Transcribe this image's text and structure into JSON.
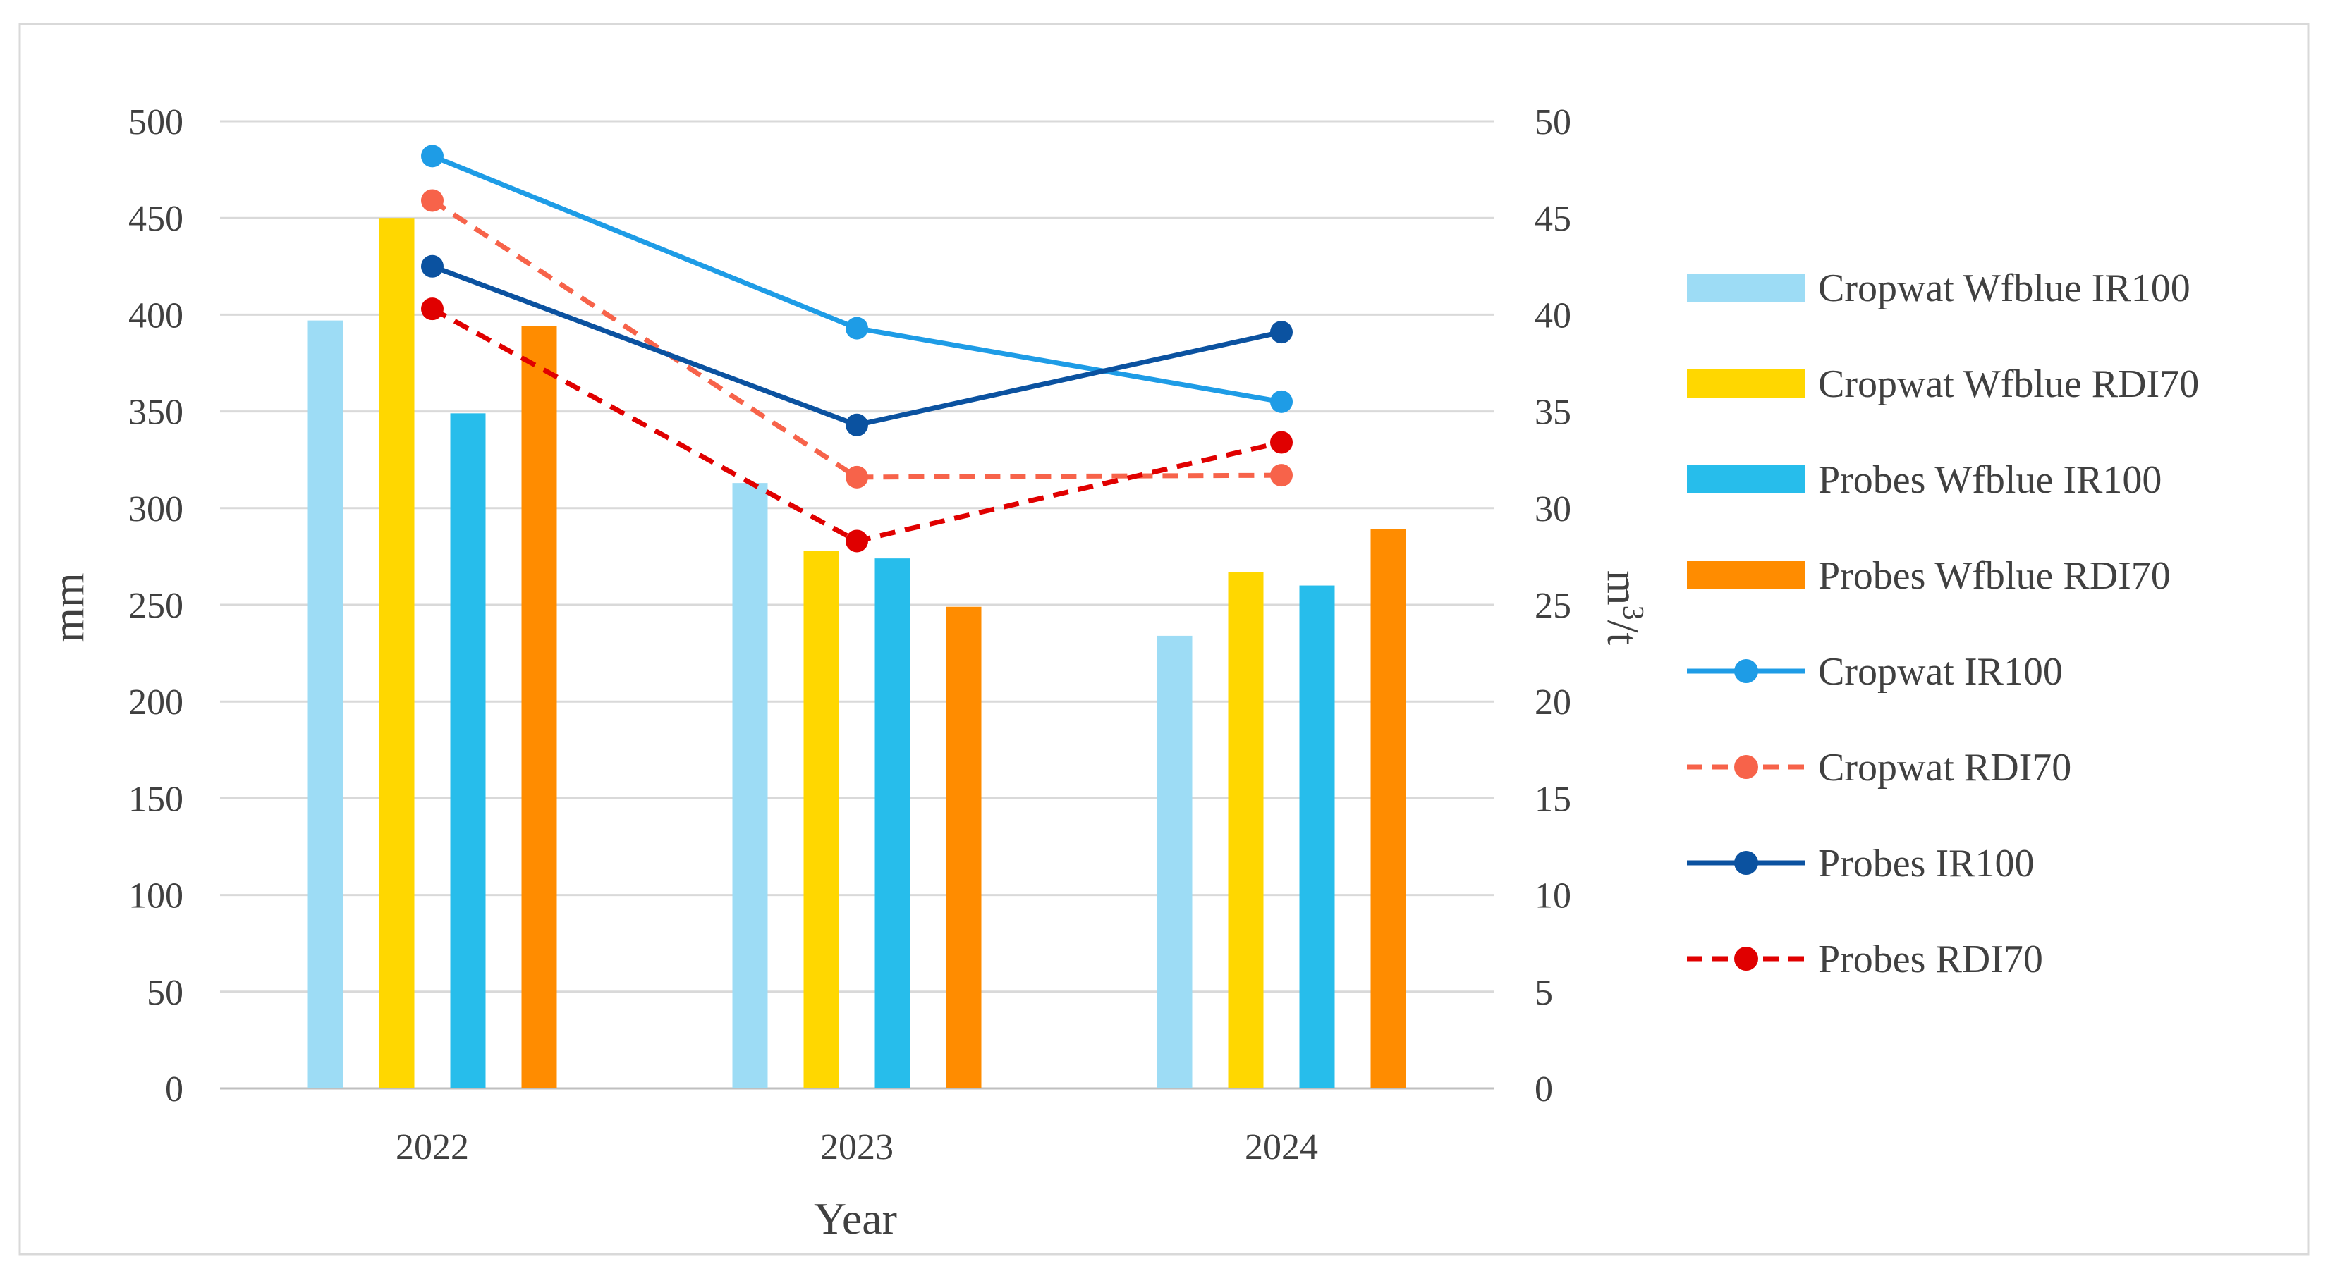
{
  "chart_data": {
    "type": "bar",
    "title": "",
    "categories": [
      "2022",
      "2023",
      "2024"
    ],
    "xlabel": "Year",
    "ylabel": "mm",
    "y2label_base": "m",
    "y2label_sup": "3",
    "y2label_tail": "/t",
    "ylim": [
      0,
      500
    ],
    "y2lim": [
      0,
      50
    ],
    "y_ticks": [
      "0",
      "50",
      "100",
      "150",
      "200",
      "250",
      "300",
      "350",
      "400",
      "450",
      "500"
    ],
    "y2_ticks": [
      "0",
      "5",
      "10",
      "15",
      "20",
      "25",
      "30",
      "35",
      "40",
      "45",
      "50"
    ],
    "grid": true,
    "legend_position": "right",
    "series": [
      {
        "name": "Cropwat Wfblue IR100",
        "kind": "bar",
        "axis": "left",
        "color": "#9DDCF5",
        "values": [
          397,
          313,
          234
        ]
      },
      {
        "name": "Cropwat Wfblue RDI70",
        "kind": "bar",
        "axis": "left",
        "color": "#FFD700",
        "values": [
          450,
          278,
          267
        ]
      },
      {
        "name": "Probes Wfblue IR100",
        "kind": "bar",
        "axis": "left",
        "color": "#27BDEB",
        "values": [
          349,
          274,
          260
        ]
      },
      {
        "name": "Probes Wfblue RDI70",
        "kind": "bar",
        "axis": "left",
        "color": "#FF8C00",
        "values": [
          394,
          249,
          289
        ]
      },
      {
        "name": "Cropwat IR100",
        "kind": "line",
        "axis": "right",
        "dash": false,
        "color": "#1E9CE6",
        "values": [
          48.2,
          39.3,
          35.5
        ]
      },
      {
        "name": "Cropwat RDI70",
        "kind": "line",
        "axis": "right",
        "dash": true,
        "color": "#F7634A",
        "values": [
          45.9,
          31.6,
          31.7
        ]
      },
      {
        "name": "Probes IR100",
        "kind": "line",
        "axis": "right",
        "dash": false,
        "color": "#0B52A0",
        "values": [
          42.5,
          34.3,
          39.1
        ]
      },
      {
        "name": "Probes RDI70",
        "kind": "line",
        "axis": "right",
        "dash": true,
        "color": "#E00000",
        "values": [
          40.3,
          28.3,
          33.4
        ]
      }
    ]
  }
}
